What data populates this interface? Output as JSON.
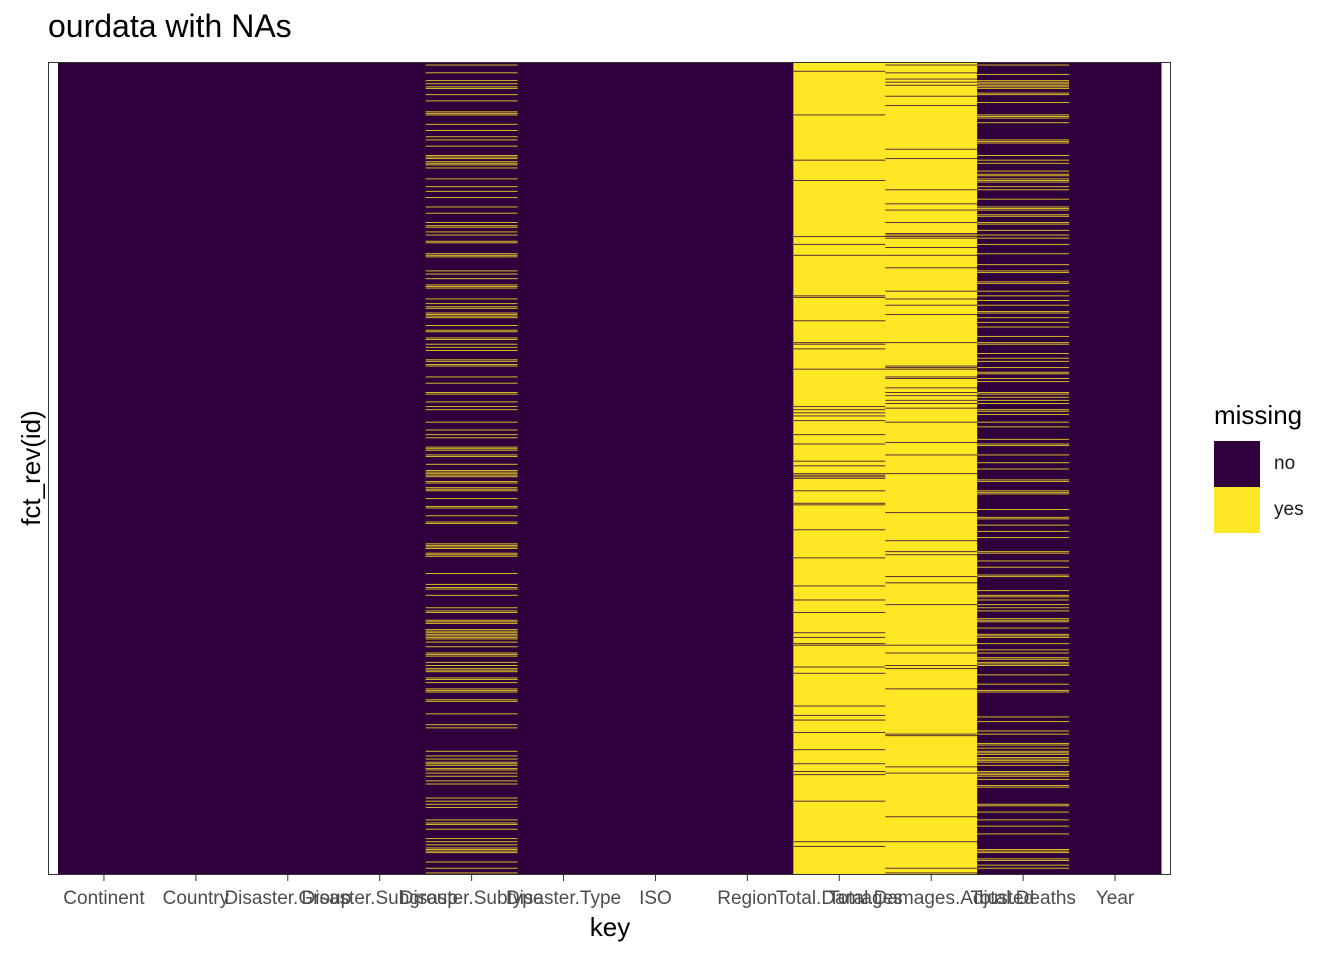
{
  "chart_data": {
    "type": "heatmap",
    "title": "ourdata with NAs",
    "xlabel": "key",
    "ylabel": "fct_rev(id)",
    "categories": [
      "Continent",
      "Country",
      "Disaster.Group",
      "Disaster.Subgroup",
      "Disaster.Subtype",
      "Disaster.Type",
      "ISO",
      "Region",
      "Total.Damages",
      "Total.Damages.Adjusted",
      "Total.Deaths",
      "Year"
    ],
    "missing_share": [
      0.0,
      0.0,
      0.0,
      0.0,
      0.35,
      0.0,
      0.0,
      0.0,
      0.9,
      0.9,
      0.3,
      0.0
    ],
    "legend": {
      "title": "missing",
      "placement": "right",
      "items": [
        {
          "label": "no",
          "color": "#30003c"
        },
        {
          "label": "yes",
          "color": "#fde725"
        }
      ]
    },
    "grid": false
  }
}
